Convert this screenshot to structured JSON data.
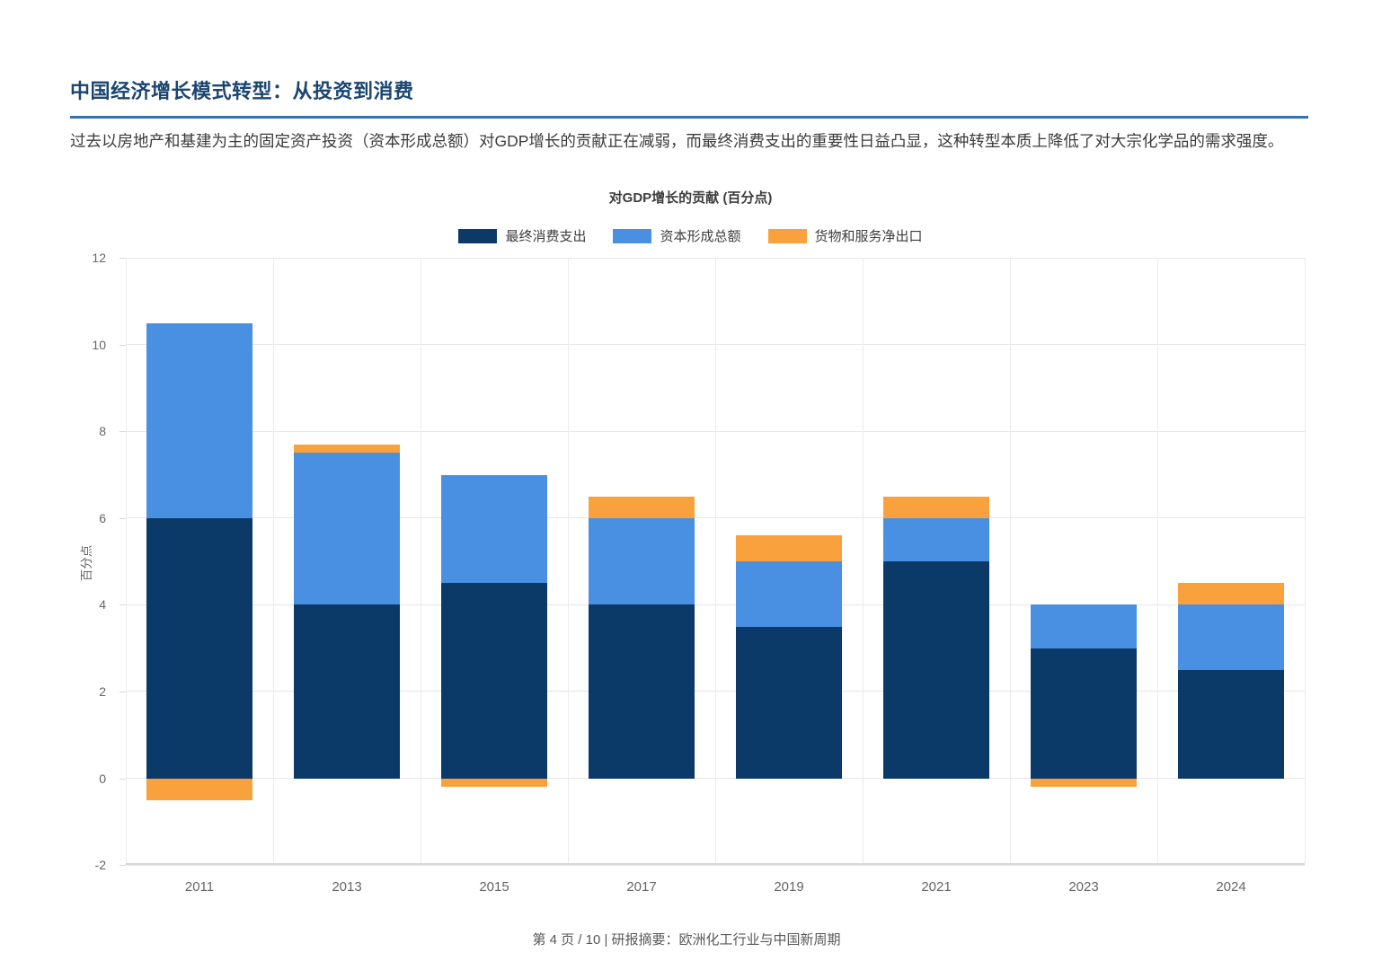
{
  "page": {
    "title": "中国经济增长模式转型：从投资到消费",
    "description": "过去以房地产和基建为主的固定资产投资（资本形成总额）对GDP增长的贡献正在减弱，而最终消费支出的重要性日益凸显，这种转型本质上降低了对大宗化学品的需求强度。",
    "footer": "第 4 页 / 10 | 研报摘要：欧洲化工行业与中国新周期",
    "accent_color": "#1b4670",
    "rule_color": "#2e74b5"
  },
  "chart_data": {
    "type": "bar",
    "stacked": true,
    "title": "对GDP增长的贡献 (百分点)",
    "ylabel": "百分点",
    "xlabel": "",
    "categories": [
      "2011",
      "2013",
      "2015",
      "2017",
      "2019",
      "2021",
      "2023",
      "2024"
    ],
    "series": [
      {
        "name": "最终消费支出",
        "color": "#0b3a68",
        "values": [
          6.0,
          4.0,
          4.5,
          4.0,
          3.5,
          5.0,
          3.0,
          2.5
        ]
      },
      {
        "name": "资本形成总额",
        "color": "#4a90e2",
        "values": [
          4.5,
          3.5,
          2.5,
          2.0,
          1.5,
          1.0,
          1.0,
          1.5
        ]
      },
      {
        "name": "货物和服务净出口",
        "color": "#f9a13d",
        "values": [
          -0.5,
          0.2,
          -0.2,
          0.5,
          0.6,
          0.5,
          -0.2,
          0.5
        ]
      }
    ],
    "ylim": [
      -2,
      12
    ],
    "yticks": [
      12,
      10,
      8,
      6,
      4,
      2,
      0,
      -2
    ],
    "grid": true,
    "legend_position": "top",
    "bar_fraction": 0.72
  }
}
